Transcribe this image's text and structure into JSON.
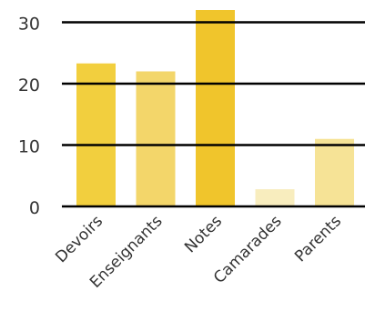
{
  "chart_data": {
    "type": "bar",
    "categories": [
      "Devoirs",
      "Enseignants",
      "Notes",
      "Camarades",
      "Parents"
    ],
    "values": [
      23.3,
      22,
      32,
      2.8,
      11
    ],
    "ylim": [
      0,
      32
    ],
    "yticks": [
      0,
      10,
      20,
      30
    ],
    "grid": true,
    "bar_colors": [
      "#F2CF3E",
      "#F3D66A",
      "#F0C52C",
      "#F8EDBE",
      "#F6E396"
    ],
    "gridline_color": "#000000",
    "tick_label_color": "#333333"
  }
}
